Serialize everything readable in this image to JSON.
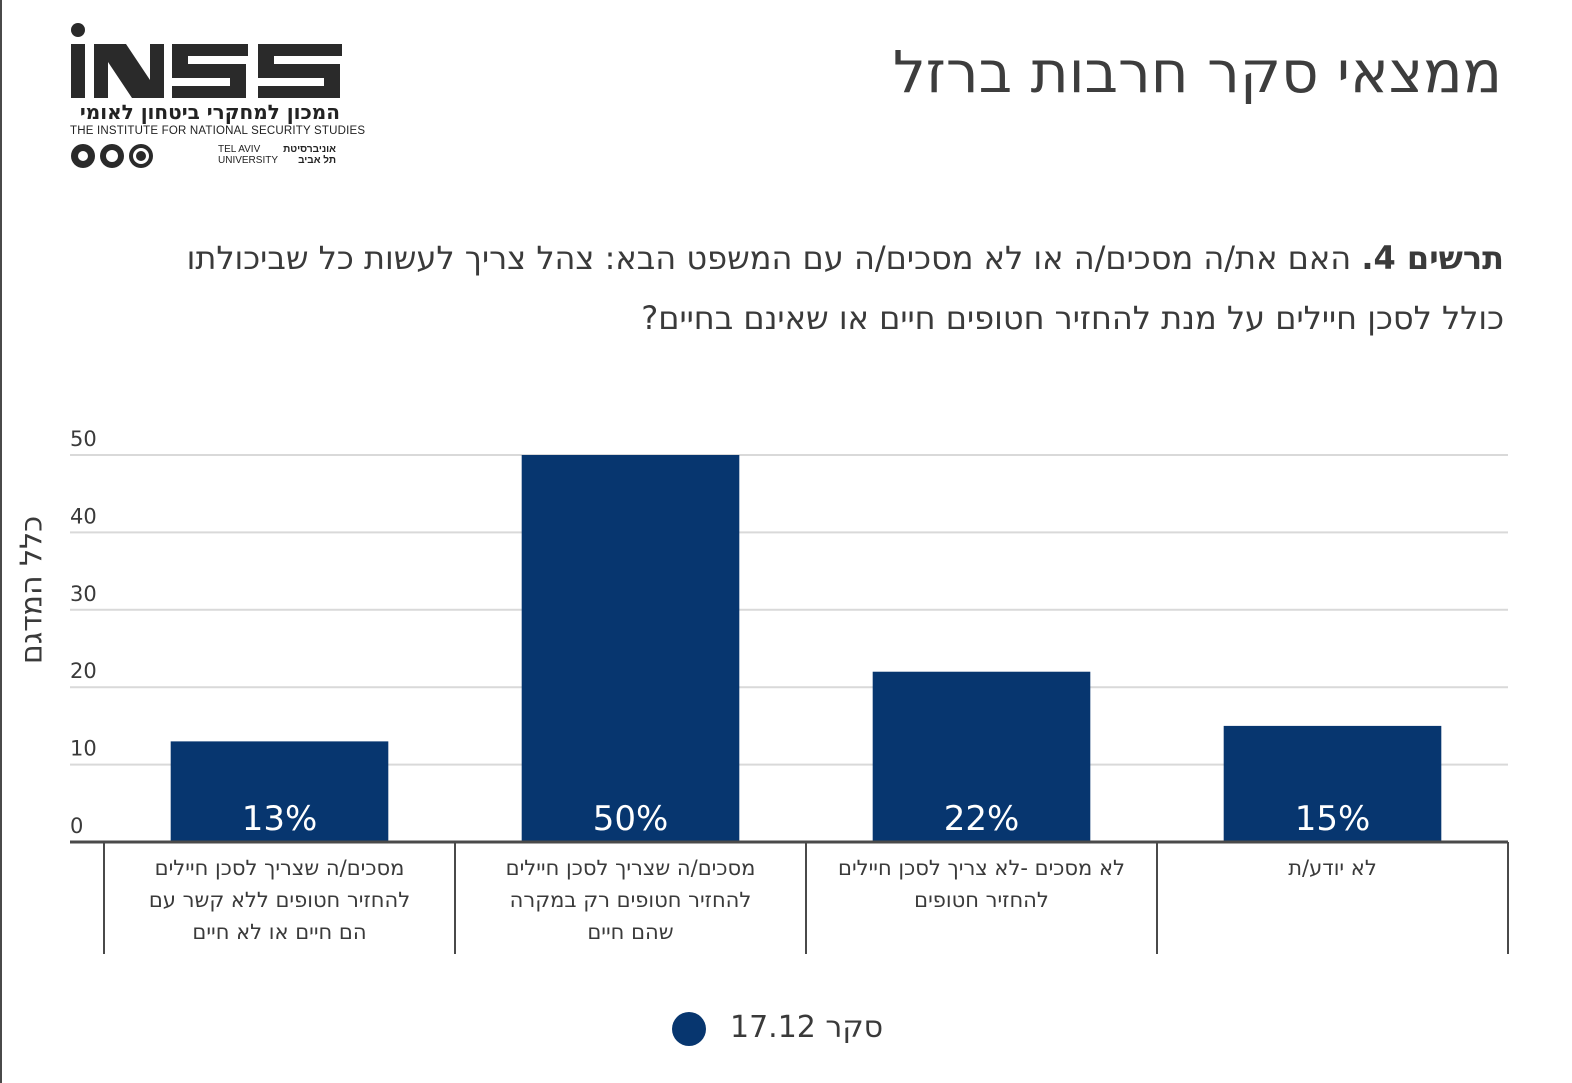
{
  "logo": {
    "wordmark": "iNSS",
    "hebrew": "המכון למחקרי ביטחון לאומי",
    "english": "THE INSTITUTE FOR NATIONAL SECURITY STUDIES",
    "university_en_1": "TEL AVIV",
    "university_en_2": "UNIVERSITY",
    "university_he_1": "אוניברסיטת",
    "university_he_2": "תל אביב"
  },
  "header": {
    "title": "ממצאי סקר חרבות ברזל"
  },
  "question": {
    "label": "תרשים 4.",
    "text": "האם את/ה מסכים/ה או לא מסכים/ה עם המשפט הבא: צהל צריך לעשות כל שביכולתו כולל לסכן חיילים על מנת להחזיר חטופים חיים או שאינם בחיים?"
  },
  "colors": {
    "bar": "#07366f",
    "grid": "#d9d9d9",
    "axis": "#4a4a4a",
    "text": "#3a3a3a"
  },
  "chart_data": {
    "type": "bar",
    "ylabel": "כלל המדגם",
    "ylim": [
      0,
      50
    ],
    "yticks": [
      0,
      10,
      20,
      30,
      40,
      50
    ],
    "grid": true,
    "legend_position": "bottom",
    "categories": [
      [
        "מסכים/ה שצריך לסכן חיילים",
        "להחזיר חטופים ללא קשר עם",
        "הם חיים או לא חיים"
      ],
      [
        "מסכים/ה שצריך לסכן חיילים",
        "להחזיר חטופים רק במקרה",
        "שהם חיים"
      ],
      [
        "לא מסכים -לא צריך לסכן חיילים",
        "להחזיר חטופים"
      ],
      [
        "לא יודע/ת"
      ]
    ],
    "series": [
      {
        "name": "סקר 17.12",
        "values": [
          13,
          50,
          22,
          15
        ],
        "labels": [
          "13%",
          "50%",
          "22%",
          "15%"
        ]
      }
    ]
  }
}
